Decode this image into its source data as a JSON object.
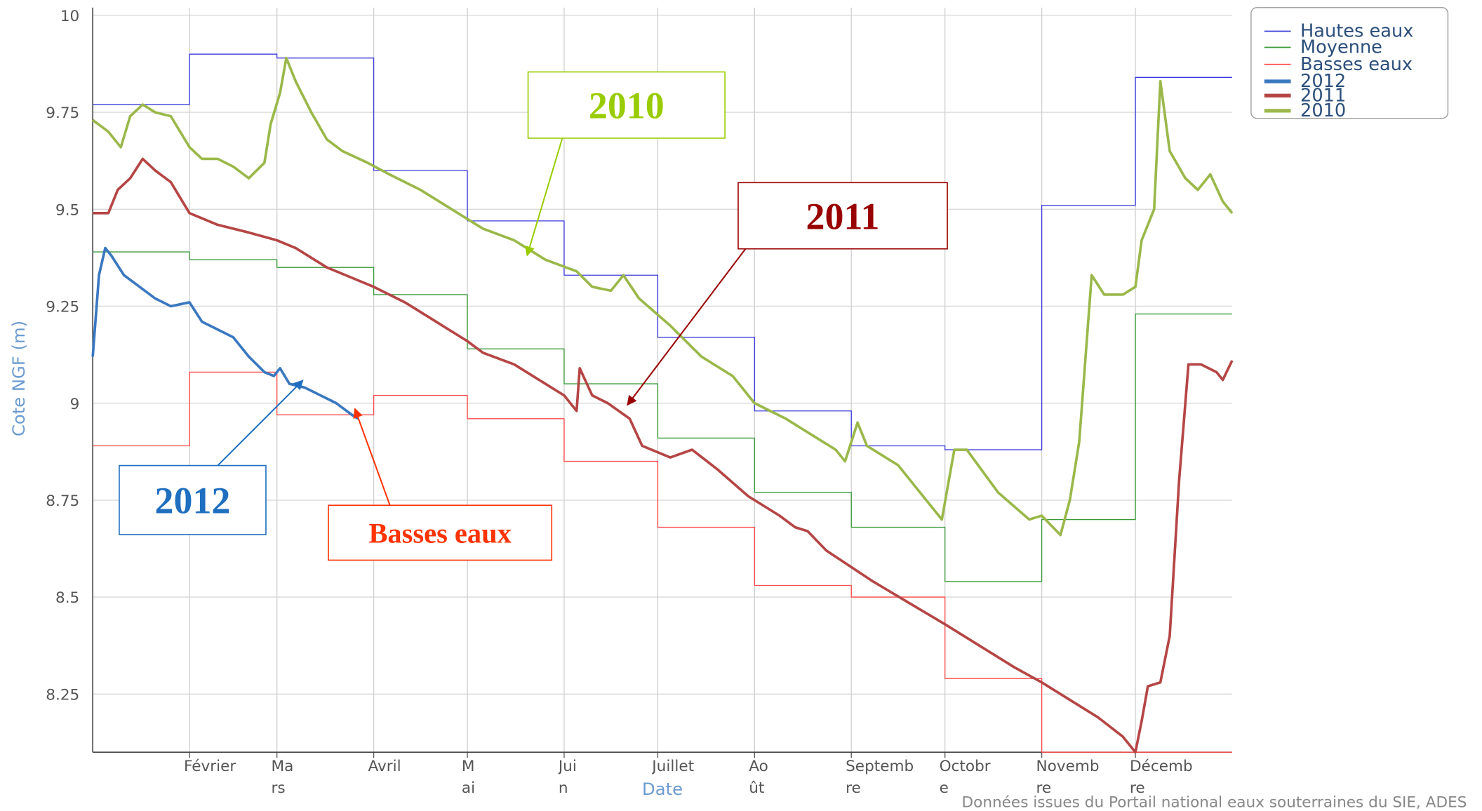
{
  "chart_data": {
    "type": "line",
    "y_label": "Cote NGF (m)",
    "x_label": "Date",
    "source": "Données issues du Portail national eaux souterraines du SIE, ADES",
    "xlim": [
      0,
      365
    ],
    "xticks": [
      {
        "value": 31,
        "label": "Février"
      },
      {
        "value": 59,
        "label": "Mars"
      },
      {
        "value": 90,
        "label": "Avril"
      },
      {
        "value": 120,
        "label": "Mai"
      },
      {
        "value": 151,
        "label": "Juin"
      },
      {
        "value": 181,
        "label": "Juillet"
      },
      {
        "value": 212,
        "label": "Août"
      },
      {
        "value": 243,
        "label": "Septembre"
      },
      {
        "value": 273,
        "label": "Octobre"
      },
      {
        "value": 304,
        "label": "Novembre"
      },
      {
        "value": 334,
        "label": "Décembre"
      }
    ],
    "ylim": [
      8.1,
      10.02
    ],
    "yticks": [
      8.25,
      8.5,
      8.75,
      9,
      9.25,
      9.5,
      9.75,
      10
    ],
    "grid": true,
    "legend": "top-right",
    "series": [
      {
        "name": "Hautes eaux",
        "color": "#3b3bdb",
        "step": true,
        "line_width": 1,
        "x": [
          0,
          31,
          59,
          90,
          120,
          151,
          181,
          212,
          243,
          273,
          304,
          334
        ],
        "values": [
          9.77,
          9.9,
          9.89,
          9.6,
          9.47,
          9.33,
          9.17,
          8.98,
          8.89,
          8.88,
          9.51,
          9.84
        ]
      },
      {
        "name": "Moyenne",
        "color": "#3a9a3a",
        "step": true,
        "line_width": 1,
        "x": [
          0,
          31,
          59,
          90,
          120,
          151,
          181,
          212,
          243,
          273,
          304,
          334
        ],
        "values": [
          9.39,
          9.37,
          9.35,
          9.28,
          9.14,
          9.05,
          8.91,
          8.77,
          8.68,
          8.54,
          8.7,
          9.23
        ]
      },
      {
        "name": "Basses eaux",
        "color": "#ff4a4a",
        "step": true,
        "line_width": 1,
        "x": [
          0,
          31,
          59,
          90,
          120,
          151,
          181,
          212,
          243,
          273,
          304,
          334
        ],
        "values": [
          8.89,
          9.08,
          8.97,
          9.02,
          8.96,
          8.85,
          8.68,
          8.53,
          8.5,
          8.29,
          8.1,
          8.1
        ]
      },
      {
        "name": "2012",
        "color": "#3a78c0",
        "step": false,
        "line_width": 3,
        "x": [
          0,
          2,
          4,
          6,
          10,
          15,
          20,
          25,
          31,
          35,
          40,
          45,
          50,
          55,
          58,
          60,
          63,
          68,
          73,
          78,
          83,
          85
        ],
        "values": [
          9.12,
          9.33,
          9.4,
          9.38,
          9.33,
          9.3,
          9.27,
          9.25,
          9.26,
          9.21,
          9.19,
          9.17,
          9.12,
          9.08,
          9.07,
          9.09,
          9.05,
          9.04,
          9.02,
          9.0,
          8.97,
          8.96
        ]
      },
      {
        "name": "2011",
        "color": "#b54545",
        "step": false,
        "line_width": 3,
        "x": [
          0,
          5,
          8,
          12,
          16,
          20,
          25,
          31,
          40,
          50,
          59,
          65,
          75,
          90,
          100,
          110,
          120,
          125,
          135,
          145,
          151,
          155,
          156,
          160,
          165,
          172,
          176,
          185,
          192,
          200,
          210,
          220,
          225,
          229,
          235,
          250,
          273,
          285,
          295,
          304,
          312,
          322,
          330,
          334,
          336,
          338,
          342,
          345,
          348,
          351,
          355,
          360,
          362,
          365
        ],
        "values": [
          9.49,
          9.49,
          9.55,
          9.58,
          9.63,
          9.6,
          9.57,
          9.49,
          9.46,
          9.44,
          9.42,
          9.4,
          9.35,
          9.3,
          9.26,
          9.21,
          9.16,
          9.13,
          9.1,
          9.05,
          9.02,
          8.98,
          9.09,
          9.02,
          9.0,
          8.96,
          8.89,
          8.86,
          8.88,
          8.83,
          8.76,
          8.71,
          8.68,
          8.67,
          8.62,
          8.54,
          8.43,
          8.37,
          8.32,
          8.28,
          8.24,
          8.19,
          8.14,
          8.1,
          8.18,
          8.27,
          8.28,
          8.4,
          8.8,
          9.1,
          9.1,
          9.08,
          9.06,
          9.11
        ]
      },
      {
        "name": "2010",
        "color": "#9ab84a",
        "step": false,
        "line_width": 3,
        "x": [
          0,
          5,
          9,
          12,
          16,
          20,
          25,
          28,
          31,
          35,
          40,
          45,
          50,
          55,
          57,
          60,
          62,
          65,
          70,
          75,
          80,
          88,
          95,
          105,
          115,
          125,
          135,
          145,
          155,
          160,
          166,
          170,
          175,
          185,
          195,
          205,
          212,
          222,
          230,
          238,
          241,
          245,
          248,
          258,
          265,
          272,
          276,
          280,
          290,
          300,
          304,
          310,
          313,
          316,
          320,
          324,
          330,
          334,
          336,
          340,
          342,
          345,
          350,
          354,
          358,
          362,
          365
        ],
        "values": [
          9.73,
          9.7,
          9.66,
          9.74,
          9.77,
          9.75,
          9.74,
          9.7,
          9.66,
          9.63,
          9.63,
          9.61,
          9.58,
          9.62,
          9.72,
          9.8,
          9.89,
          9.83,
          9.75,
          9.68,
          9.65,
          9.62,
          9.59,
          9.55,
          9.5,
          9.45,
          9.42,
          9.37,
          9.34,
          9.3,
          9.29,
          9.33,
          9.27,
          9.2,
          9.12,
          9.07,
          9.0,
          8.96,
          8.92,
          8.88,
          8.85,
          8.95,
          8.89,
          8.84,
          8.77,
          8.7,
          8.88,
          8.88,
          8.77,
          8.7,
          8.71,
          8.66,
          8.75,
          8.9,
          9.33,
          9.28,
          9.28,
          9.3,
          9.42,
          9.5,
          9.83,
          9.65,
          9.58,
          9.55,
          9.59,
          9.52,
          9.49
        ]
      }
    ],
    "annotations": [
      {
        "text": "2010",
        "color": "#99cc00"
      },
      {
        "text": "2011",
        "color": "#990000"
      },
      {
        "text": "2012",
        "color": "#1f6fc0"
      },
      {
        "text": "Basses eaux",
        "color": "#ff3300"
      }
    ]
  }
}
